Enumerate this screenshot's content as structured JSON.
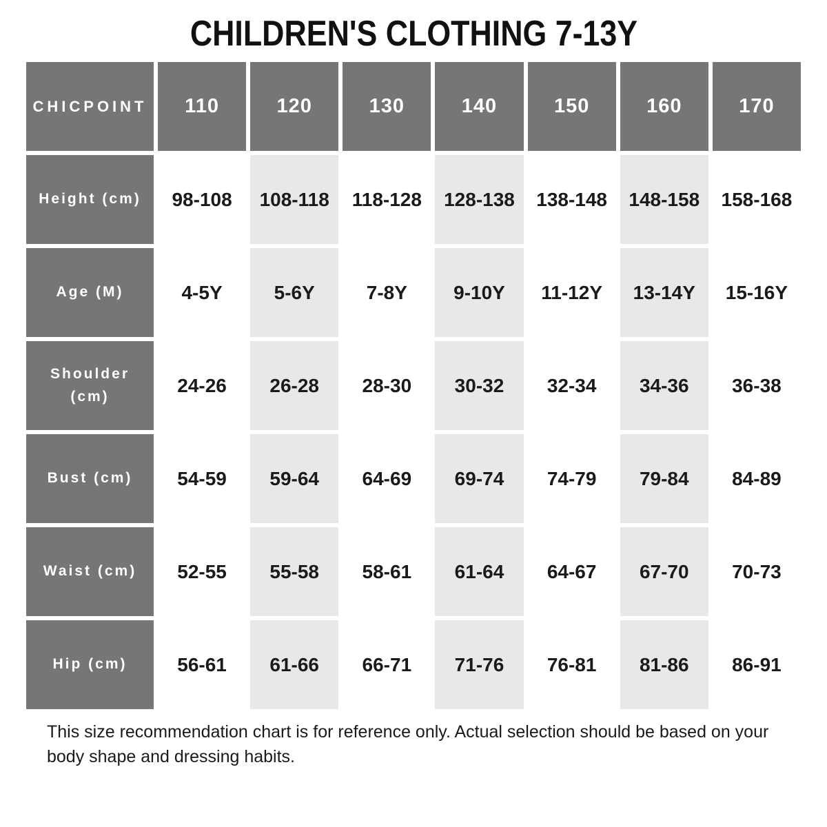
{
  "title": "CHILDREN'S CLOTHING 7-13Y",
  "table": {
    "brand": "CHICPOINT",
    "columns": [
      "110",
      "120",
      "130",
      "140",
      "150",
      "160",
      "170"
    ],
    "shaded_column_indexes": [
      1,
      3,
      5
    ],
    "rows": [
      {
        "label": "Height (cm)",
        "values": [
          "98-108",
          "108-118",
          "118-128",
          "128-138",
          "138-148",
          "148-158",
          "158-168"
        ]
      },
      {
        "label": "Age (M)",
        "values": [
          "4-5Y",
          "5-6Y",
          "7-8Y",
          "9-10Y",
          "11-12Y",
          "13-14Y",
          "15-16Y"
        ]
      },
      {
        "label": "Shoulder (cm)",
        "values": [
          "24-26",
          "26-28",
          "28-30",
          "30-32",
          "32-34",
          "34-36",
          "36-38"
        ]
      },
      {
        "label": "Bust (cm)",
        "values": [
          "54-59",
          "59-64",
          "64-69",
          "69-74",
          "74-79",
          "79-84",
          "84-89"
        ]
      },
      {
        "label": "Waist (cm)",
        "values": [
          "52-55",
          "55-58",
          "58-61",
          "61-64",
          "64-67",
          "67-70",
          "70-73"
        ]
      },
      {
        "label": "Hip (cm)",
        "values": [
          "56-61",
          "61-66",
          "66-71",
          "71-76",
          "76-81",
          "81-86",
          "86-91"
        ]
      }
    ]
  },
  "footer": {
    "note": "This size recommendation chart is for reference only. Actual selection should be based on your body shape and dressing habits."
  },
  "colors": {
    "header_bg": "#767676",
    "header_text": "#ffffff",
    "shaded_cell_bg": "#e8e8e8",
    "text": "#1a1a1a",
    "page_bg": "#ffffff"
  }
}
